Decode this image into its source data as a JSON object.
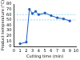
{
  "chart_data": {
    "type": "line",
    "x_label": "Cutting time (min)",
    "y_label": "Product temperature (°C)",
    "x": [
      1,
      2,
      2.5,
      3,
      3.5,
      4,
      5,
      6,
      7,
      8,
      9
    ],
    "series": [
      {
        "color": "#1f5fbf",
        "marker": "circle",
        "line_style": "solid",
        "values": [
          5,
          8,
          70,
          62,
          66,
          60,
          63,
          58,
          54,
          52,
          48
        ]
      },
      {
        "color": "#7fd0e8",
        "marker": "none",
        "line_style": "dashed",
        "x": [
          0,
          10
        ],
        "values": [
          60,
          60
        ]
      },
      {
        "color": "#7fd0e8",
        "marker": "none",
        "line_style": "dashed",
        "x": [
          0,
          10
        ],
        "values": [
          50,
          50
        ]
      }
    ],
    "xlim": [
      0,
      10
    ],
    "xticks": [
      0,
      1,
      2,
      3,
      4,
      5,
      6,
      7,
      8,
      9,
      10
    ],
    "ylim": [
      0,
      80
    ],
    "yticks": [
      0,
      10,
      20,
      30,
      40,
      50,
      60,
      70,
      80
    ],
    "grid": false
  }
}
